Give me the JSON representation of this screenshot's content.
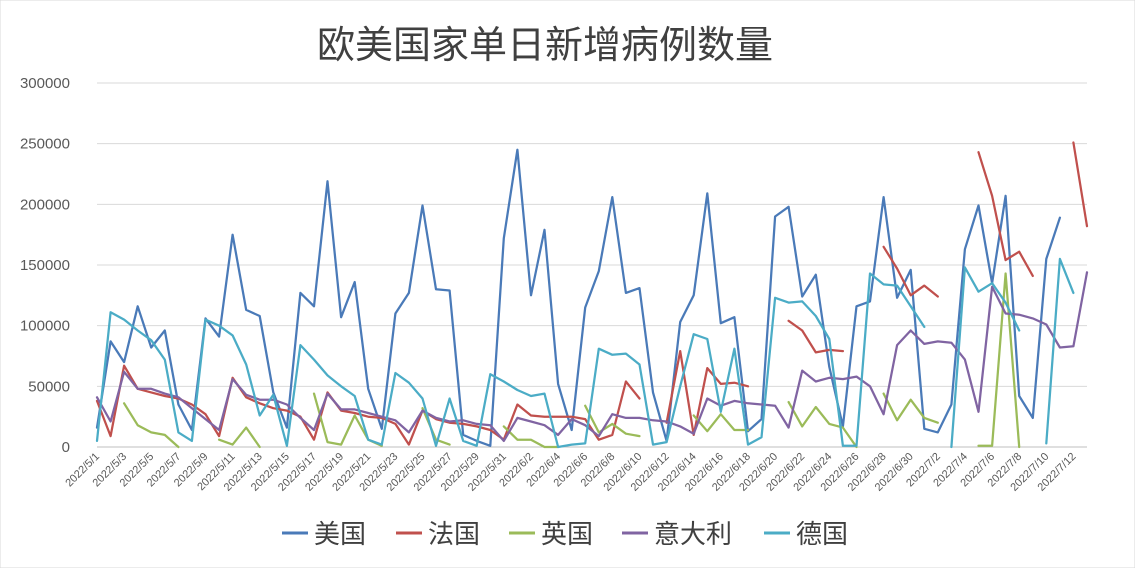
{
  "chart_data": {
    "type": "line",
    "title": "欧美国家单日新增病例数量",
    "xlabel": "",
    "ylabel": "",
    "ylim": [
      0,
      300000
    ],
    "yticks": [
      "0",
      "50000",
      "100000",
      "150000",
      "200000",
      "250000",
      "300000"
    ],
    "grid": true,
    "legend_position": "bottom",
    "x": [
      "2022/5/1",
      "2022/5/2",
      "2022/5/3",
      "2022/5/4",
      "2022/5/5",
      "2022/5/6",
      "2022/5/7",
      "2022/5/8",
      "2022/5/9",
      "2022/5/10",
      "2022/5/11",
      "2022/5/12",
      "2022/5/13",
      "2022/5/14",
      "2022/5/15",
      "2022/5/16",
      "2022/5/17",
      "2022/5/18",
      "2022/5/19",
      "2022/5/20",
      "2022/5/21",
      "2022/5/22",
      "2022/5/23",
      "2022/5/24",
      "2022/5/25",
      "2022/5/26",
      "2022/5/27",
      "2022/5/28",
      "2022/5/29",
      "2022/5/30",
      "2022/5/31",
      "2022/6/1",
      "2022/6/2",
      "2022/6/3",
      "2022/6/4",
      "2022/6/5",
      "2022/6/6",
      "2022/6/7",
      "2022/6/8",
      "2022/6/9",
      "2022/6/10",
      "2022/6/11",
      "2022/6/12",
      "2022/6/13",
      "2022/6/14",
      "2022/6/15",
      "2022/6/16",
      "2022/6/17",
      "2022/6/18",
      "2022/6/19",
      "2022/6/20",
      "2022/6/21",
      "2022/6/22",
      "2022/6/23",
      "2022/6/24",
      "2022/6/25",
      "2022/6/26",
      "2022/6/27",
      "2022/6/28",
      "2022/6/29",
      "2022/6/30",
      "2022/7/1",
      "2022/7/2",
      "2022/7/3",
      "2022/7/4",
      "2022/7/5",
      "2022/7/6",
      "2022/7/7",
      "2022/7/8",
      "2022/7/9",
      "2022/7/10",
      "2022/7/11",
      "2022/7/12",
      "2022/7/13"
    ],
    "x_tick_labels": [
      "2022/5/1",
      "2022/5/3",
      "2022/5/5",
      "2022/5/7",
      "2022/5/9",
      "2022/5/11",
      "2022/5/13",
      "2022/5/15",
      "2022/5/17",
      "2022/5/19",
      "2022/5/21",
      "2022/5/23",
      "2022/5/25",
      "2022/5/27",
      "2022/5/29",
      "2022/5/31",
      "2022/6/2",
      "2022/6/4",
      "2022/6/6",
      "2022/6/8",
      "2022/6/10",
      "2022/6/12",
      "2022/6/14",
      "2022/6/16",
      "2022/6/18",
      "2022/6/20",
      "2022/6/22",
      "2022/6/24",
      "2022/6/26",
      "2022/6/28",
      "2022/6/30",
      "2022/7/2",
      "2022/7/4",
      "2022/7/6",
      "2022/7/8",
      "2022/7/10",
      "2022/7/12"
    ],
    "series": [
      {
        "name": "美国",
        "color": "#4a7ab8",
        "values": [
          16000,
          87000,
          70000,
          116000,
          82000,
          96000,
          35000,
          14000,
          106000,
          91000,
          175000,
          113000,
          108000,
          45000,
          16000,
          127000,
          116000,
          219000,
          107000,
          136000,
          48000,
          15000,
          110000,
          127000,
          199000,
          130000,
          129000,
          10000,
          5000,
          1000,
          172000,
          245000,
          125000,
          179000,
          52000,
          14000,
          115000,
          145000,
          206000,
          127000,
          131000,
          45000,
          5000,
          103000,
          125000,
          209000,
          102000,
          107000,
          13000,
          23000,
          190000,
          198000,
          124000,
          142000,
          66000,
          17000,
          116000,
          120000,
          206000,
          123000,
          146000,
          15000,
          12000,
          35000,
          163000,
          199000,
          135000,
          207000,
          42000,
          24000,
          155000,
          189000,
          null,
          null
        ]
      },
      {
        "name": "法国",
        "color": "#c0504d",
        "values": [
          38000,
          9000,
          67000,
          48000,
          45000,
          42000,
          40000,
          35000,
          27000,
          9000,
          57000,
          41000,
          36000,
          32000,
          30000,
          25000,
          6000,
          45000,
          30000,
          28000,
          25000,
          24000,
          19000,
          2000,
          30000,
          23000,
          20000,
          19000,
          17000,
          14000,
          6000,
          35000,
          26000,
          25000,
          25000,
          25000,
          23000,
          6000,
          10000,
          54000,
          40000,
          null,
          20000,
          79000,
          10000,
          65000,
          52000,
          53000,
          50000,
          null,
          null,
          104000,
          96000,
          78000,
          80000,
          79000,
          null,
          null,
          165000,
          147000,
          125000,
          133000,
          124000,
          null,
          null,
          243000,
          207000,
          154000,
          161000,
          141000,
          null,
          null,
          251000,
          182000
        ]
      },
      {
        "name": "英国",
        "color": "#9bbb59",
        "values": [
          null,
          null,
          36000,
          18000,
          12000,
          10000,
          0,
          null,
          null,
          6000,
          2000,
          16000,
          0,
          null,
          null,
          null,
          44000,
          4000,
          2000,
          26000,
          6000,
          1000,
          null,
          null,
          32000,
          6000,
          2000,
          null,
          null,
          null,
          17000,
          6000,
          6000,
          0,
          0,
          null,
          34000,
          12000,
          19000,
          11000,
          9000,
          null,
          null,
          null,
          26000,
          13000,
          27000,
          14000,
          14000,
          null,
          null,
          37000,
          17000,
          33000,
          19000,
          16000,
          0,
          null,
          44000,
          22000,
          39000,
          24000,
          20000,
          null,
          null,
          1000,
          1000,
          143000,
          0,
          null,
          null,
          null,
          null,
          null
        ]
      },
      {
        "name": "意大利",
        "color": "#8064a2",
        "values": [
          41000,
          21000,
          62000,
          48000,
          48000,
          44000,
          41000,
          32000,
          23000,
          14000,
          56000,
          43000,
          39000,
          39000,
          35000,
          24000,
          14000,
          44000,
          31000,
          31000,
          28000,
          25000,
          22000,
          12000,
          30000,
          24000,
          21000,
          22000,
          19000,
          18000,
          5000,
          24000,
          21000,
          18000,
          10000,
          23000,
          18000,
          9000,
          27000,
          24000,
          24000,
          22000,
          21000,
          17000,
          11000,
          40000,
          34000,
          38000,
          36000,
          35000,
          34000,
          16000,
          63000,
          54000,
          57000,
          56000,
          58000,
          50000,
          27000,
          84000,
          96000,
          85000,
          87000,
          86000,
          72000,
          29000,
          132000,
          110000,
          109000,
          106000,
          101000,
          82000,
          83000,
          144000
        ]
      },
      {
        "name": "德国",
        "color": "#4bacc6",
        "values": [
          5000,
          111000,
          105000,
          96000,
          88000,
          72000,
          12000,
          5000,
          105000,
          100000,
          92000,
          68000,
          26000,
          43000,
          1000,
          84000,
          72000,
          59000,
          50000,
          42000,
          6000,
          2000,
          61000,
          53000,
          40000,
          1000,
          40000,
          5000,
          1000,
          60000,
          54000,
          47000,
          42000,
          44000,
          0,
          2000,
          3000,
          81000,
          76000,
          77000,
          68000,
          2000,
          4000,
          50000,
          93000,
          89000,
          29000,
          81000,
          2000,
          8000,
          123000,
          119000,
          120000,
          108000,
          89000,
          1000,
          1000,
          143000,
          134000,
          133000,
          116000,
          99000,
          null,
          0,
          148000,
          128000,
          135000,
          119000,
          96000,
          null,
          3000,
          155000,
          127000,
          null
        ]
      }
    ]
  }
}
